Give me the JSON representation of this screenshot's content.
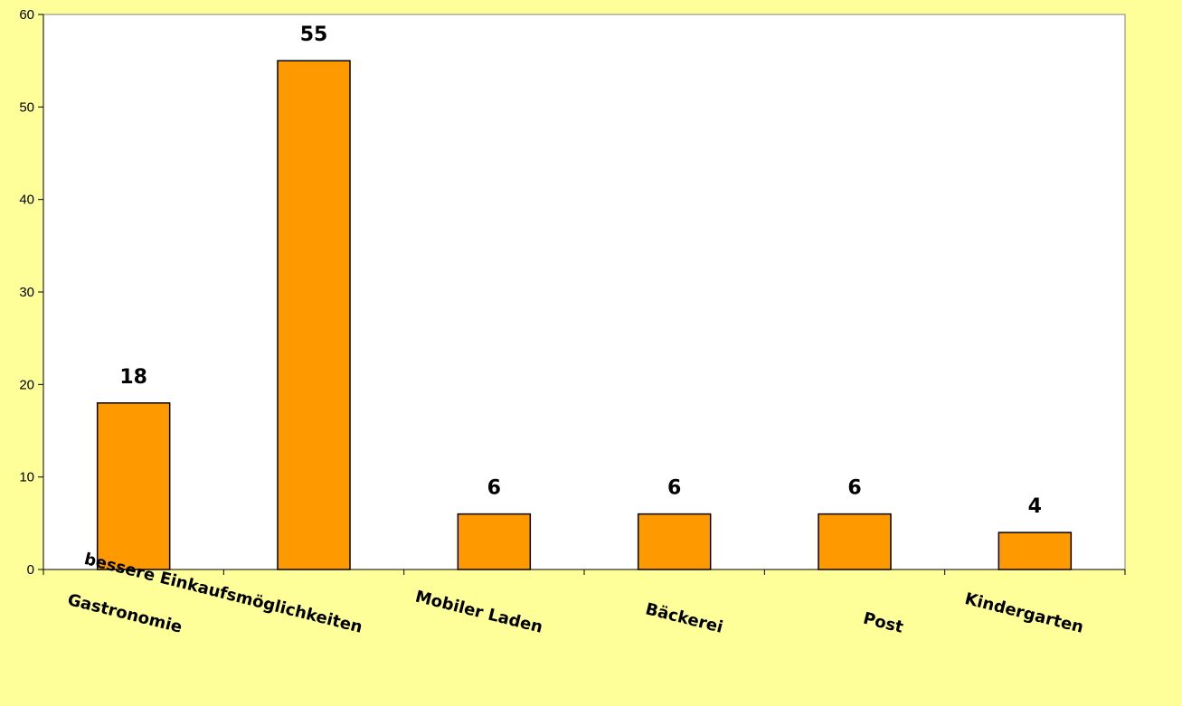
{
  "chart_data": {
    "type": "bar",
    "title": "",
    "xlabel": "",
    "ylabel": "",
    "categories": [
      "Gastronomie",
      "bessere Einkaufsmöglichkeiten",
      "Mobiler Laden",
      "Bäckerei",
      "Post",
      "Kindergarten"
    ],
    "values": [
      18,
      55,
      6,
      6,
      6,
      4
    ],
    "data_labels": [
      "18",
      "55",
      "6",
      "6",
      "6",
      "4"
    ],
    "ylim": [
      0,
      60
    ],
    "yticks": [
      0,
      10,
      20,
      30,
      40,
      50,
      60
    ],
    "grid": false,
    "legend": "none",
    "bar_color": "#ff9900",
    "bar_stroke": "#000000",
    "plot_background": "#ffffff",
    "page_background": "#ffff99"
  }
}
